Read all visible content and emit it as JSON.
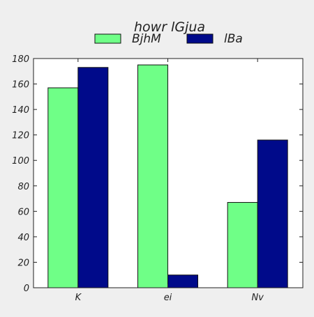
{
  "chart_data": {
    "type": "bar",
    "title": "howr lGjua",
    "xlabel": "",
    "ylabel": "",
    "categories": [
      "K",
      "ei",
      "Nv"
    ],
    "series": [
      {
        "name": "BjhM",
        "color": "#6fff87",
        "values": [
          157,
          175,
          67
        ]
      },
      {
        "name": "lBa",
        "color": "#000a8a",
        "values": [
          173,
          10,
          116
        ]
      }
    ],
    "ylim": [
      0,
      180
    ],
    "yticks": [
      0,
      20,
      40,
      60,
      80,
      100,
      120,
      140,
      160,
      180
    ],
    "grid": false,
    "legend_position": "top-center"
  },
  "colors": {
    "background": "#efefef",
    "plot_background": "#ffffff",
    "axis": "#222222"
  }
}
